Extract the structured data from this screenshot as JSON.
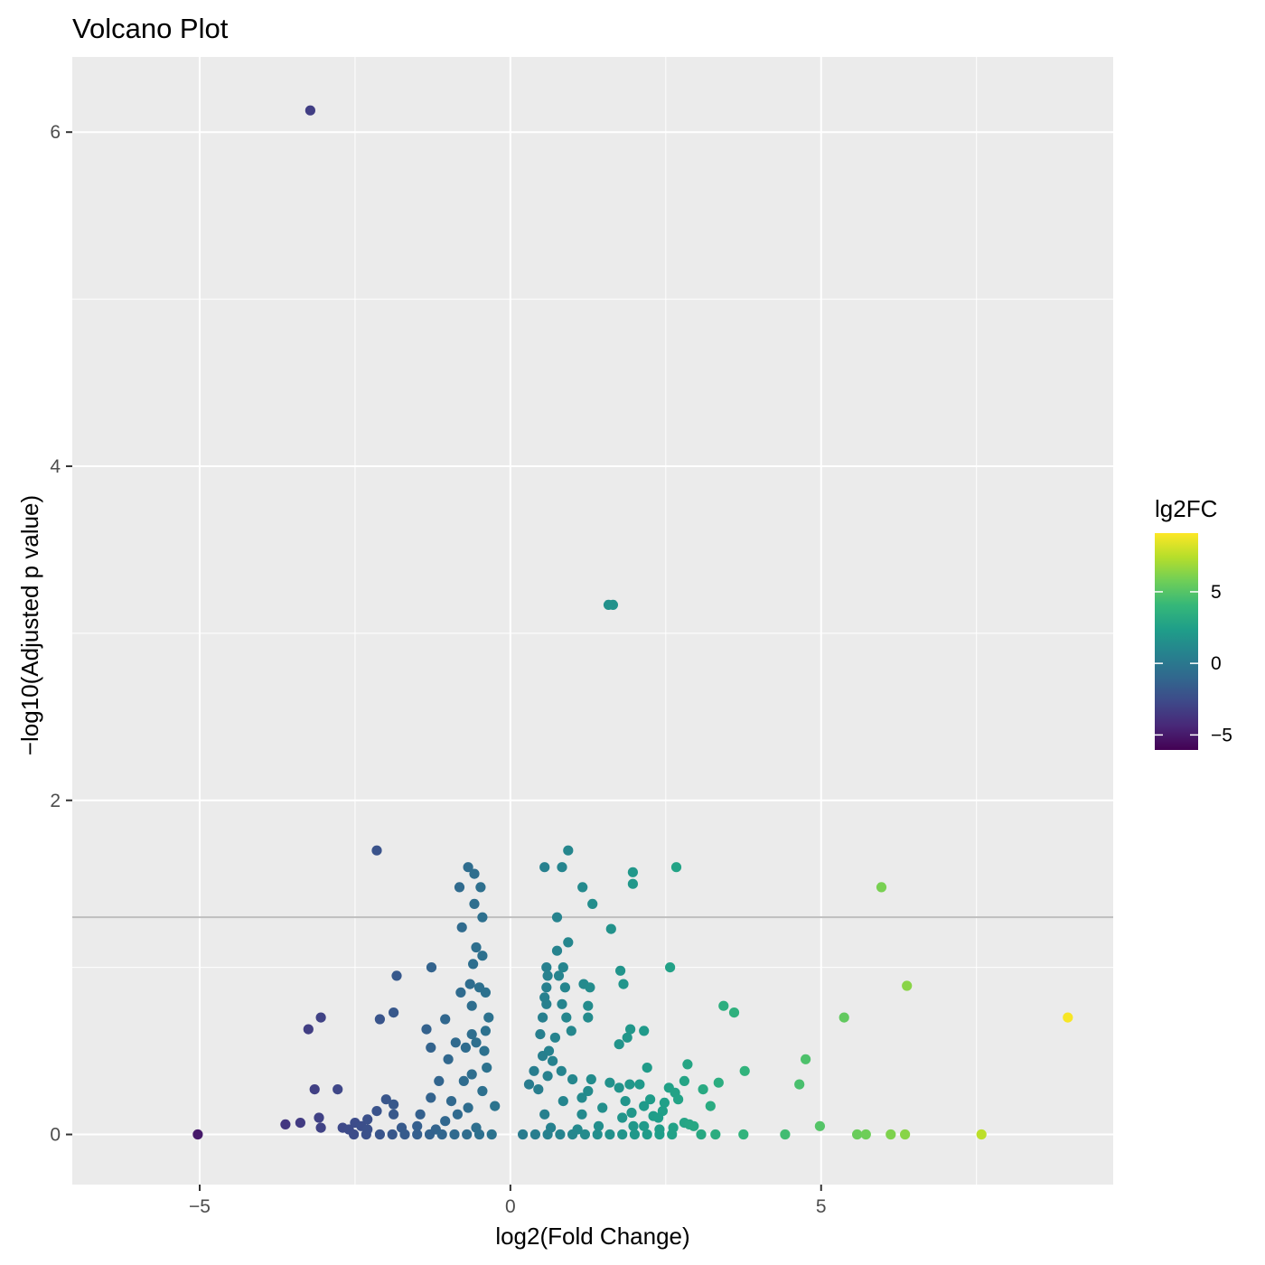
{
  "chart_data": {
    "type": "scatter",
    "title": "Volcano Plot",
    "xlabel": "log2(Fold Change)",
    "ylabel": "−log10(Adjusted p value)",
    "xlim": [
      -7.05,
      9.7
    ],
    "ylim": [
      -0.3,
      6.45
    ],
    "x_ticks": [
      -5,
      0,
      5
    ],
    "x_tick_labels": [
      "−5",
      "0",
      "5"
    ],
    "y_ticks": [
      0,
      2,
      4,
      6
    ],
    "y_tick_labels": [
      "0",
      "2",
      "4",
      "6"
    ],
    "threshold_line": {
      "y": 1.3,
      "color": "#bebebe"
    },
    "grid": true,
    "panel_background": "#ebebeb",
    "grid_color": "#ffffff",
    "legend": {
      "title": "lg2FC",
      "position": "right",
      "ticks": [
        5,
        0,
        -5
      ],
      "tick_labels": [
        "5",
        "0",
        "−5"
      ],
      "range": [
        -6.05,
        9.1
      ],
      "palette": [
        "#440154",
        "#482878",
        "#3e4989",
        "#31688e",
        "#26828e",
        "#1f9e89",
        "#35b779",
        "#6ece58",
        "#b5de2b",
        "#fde725"
      ]
    },
    "points": [
      {
        "x": -3.22,
        "y": 6.13
      },
      {
        "x": 1.58,
        "y": 3.17
      },
      {
        "x": 1.65,
        "y": 3.17
      },
      {
        "x": -2.15,
        "y": 1.7
      },
      {
        "x": 0.93,
        "y": 1.7
      },
      {
        "x": -0.68,
        "y": 1.6
      },
      {
        "x": -0.58,
        "y": 1.56
      },
      {
        "x": 0.55,
        "y": 1.6
      },
      {
        "x": 0.83,
        "y": 1.6
      },
      {
        "x": 1.97,
        "y": 1.57
      },
      {
        "x": 2.67,
        "y": 1.6
      },
      {
        "x": -0.82,
        "y": 1.48
      },
      {
        "x": -0.48,
        "y": 1.48
      },
      {
        "x": 1.16,
        "y": 1.48
      },
      {
        "x": 1.97,
        "y": 1.5
      },
      {
        "x": -0.58,
        "y": 1.38
      },
      {
        "x": 1.32,
        "y": 1.38
      },
      {
        "x": 5.97,
        "y": 1.48
      },
      {
        "x": -0.45,
        "y": 1.3
      },
      {
        "x": 0.75,
        "y": 1.3
      },
      {
        "x": -0.78,
        "y": 1.24
      },
      {
        "x": 1.62,
        "y": 1.23
      },
      {
        "x": 0.93,
        "y": 1.15
      },
      {
        "x": -0.55,
        "y": 1.12
      },
      {
        "x": -0.45,
        "y": 1.07
      },
      {
        "x": 0.75,
        "y": 1.1
      },
      {
        "x": -1.27,
        "y": 1.0
      },
      {
        "x": -0.6,
        "y": 1.02
      },
      {
        "x": 0.58,
        "y": 1.0
      },
      {
        "x": 0.85,
        "y": 1.0
      },
      {
        "x": 1.77,
        "y": 0.98
      },
      {
        "x": 2.57,
        "y": 1.0
      },
      {
        "x": -1.83,
        "y": 0.95
      },
      {
        "x": 0.6,
        "y": 0.95
      },
      {
        "x": 0.78,
        "y": 0.95
      },
      {
        "x": 1.18,
        "y": 0.9
      },
      {
        "x": -0.65,
        "y": 0.9
      },
      {
        "x": -0.5,
        "y": 0.88
      },
      {
        "x": 0.58,
        "y": 0.88
      },
      {
        "x": 0.88,
        "y": 0.88
      },
      {
        "x": 1.28,
        "y": 0.88
      },
      {
        "x": 1.82,
        "y": 0.9
      },
      {
        "x": 6.38,
        "y": 0.89
      },
      {
        "x": -0.8,
        "y": 0.85
      },
      {
        "x": -0.4,
        "y": 0.85
      },
      {
        "x": 0.55,
        "y": 0.82
      },
      {
        "x": -0.62,
        "y": 0.77
      },
      {
        "x": 0.58,
        "y": 0.78
      },
      {
        "x": 0.83,
        "y": 0.78
      },
      {
        "x": 1.25,
        "y": 0.77
      },
      {
        "x": 3.43,
        "y": 0.77
      },
      {
        "x": 3.6,
        "y": 0.73
      },
      {
        "x": -1.88,
        "y": 0.73
      },
      {
        "x": -0.35,
        "y": 0.7
      },
      {
        "x": -3.05,
        "y": 0.7
      },
      {
        "x": -2.1,
        "y": 0.69
      },
      {
        "x": -1.05,
        "y": 0.69
      },
      {
        "x": 0.52,
        "y": 0.7
      },
      {
        "x": 0.9,
        "y": 0.7
      },
      {
        "x": 1.25,
        "y": 0.7
      },
      {
        "x": 5.37,
        "y": 0.7
      },
      {
        "x": 8.97,
        "y": 0.7
      },
      {
        "x": -3.25,
        "y": 0.63
      },
      {
        "x": -1.35,
        "y": 0.63
      },
      {
        "x": 1.93,
        "y": 0.63
      },
      {
        "x": 2.15,
        "y": 0.62
      },
      {
        "x": -0.62,
        "y": 0.6
      },
      {
        "x": -0.4,
        "y": 0.62
      },
      {
        "x": 0.48,
        "y": 0.6
      },
      {
        "x": 0.72,
        "y": 0.58
      },
      {
        "x": 0.98,
        "y": 0.62
      },
      {
        "x": 1.88,
        "y": 0.58
      },
      {
        "x": -0.55,
        "y": 0.55
      },
      {
        "x": -1.28,
        "y": 0.52
      },
      {
        "x": -0.88,
        "y": 0.55
      },
      {
        "x": 1.75,
        "y": 0.54
      },
      {
        "x": -0.72,
        "y": 0.52
      },
      {
        "x": -0.42,
        "y": 0.5
      },
      {
        "x": 0.62,
        "y": 0.5
      },
      {
        "x": -1.0,
        "y": 0.45
      },
      {
        "x": 0.52,
        "y": 0.47
      },
      {
        "x": 4.75,
        "y": 0.45
      },
      {
        "x": 0.68,
        "y": 0.44
      },
      {
        "x": 2.85,
        "y": 0.42
      },
      {
        "x": 2.2,
        "y": 0.4
      },
      {
        "x": 3.77,
        "y": 0.38
      },
      {
        "x": -0.38,
        "y": 0.4
      },
      {
        "x": 0.38,
        "y": 0.38
      },
      {
        "x": 0.82,
        "y": 0.38
      },
      {
        "x": -0.62,
        "y": 0.36
      },
      {
        "x": 0.6,
        "y": 0.35
      },
      {
        "x": 1.0,
        "y": 0.33
      },
      {
        "x": 1.3,
        "y": 0.33
      },
      {
        "x": 2.8,
        "y": 0.32
      },
      {
        "x": 3.35,
        "y": 0.31
      },
      {
        "x": 4.65,
        "y": 0.3
      },
      {
        "x": -0.75,
        "y": 0.32
      },
      {
        "x": -1.15,
        "y": 0.32
      },
      {
        "x": 1.6,
        "y": 0.31
      },
      {
        "x": 1.92,
        "y": 0.3
      },
      {
        "x": 2.08,
        "y": 0.3
      },
      {
        "x": 0.3,
        "y": 0.3
      },
      {
        "x": -3.15,
        "y": 0.27
      },
      {
        "x": -2.78,
        "y": 0.27
      },
      {
        "x": 1.75,
        "y": 0.28
      },
      {
        "x": 2.55,
        "y": 0.28
      },
      {
        "x": 3.1,
        "y": 0.27
      },
      {
        "x": -0.45,
        "y": 0.26
      },
      {
        "x": 0.45,
        "y": 0.27
      },
      {
        "x": 1.25,
        "y": 0.26
      },
      {
        "x": 2.65,
        "y": 0.25
      },
      {
        "x": -1.28,
        "y": 0.22
      },
      {
        "x": -2.0,
        "y": 0.21
      },
      {
        "x": 1.15,
        "y": 0.22
      },
      {
        "x": 1.85,
        "y": 0.2
      },
      {
        "x": 2.25,
        "y": 0.21
      },
      {
        "x": 2.7,
        "y": 0.21
      },
      {
        "x": -0.95,
        "y": 0.2
      },
      {
        "x": 0.85,
        "y": 0.2
      },
      {
        "x": 2.48,
        "y": 0.19
      },
      {
        "x": -1.88,
        "y": 0.18
      },
      {
        "x": 2.15,
        "y": 0.17
      },
      {
        "x": -0.25,
        "y": 0.17
      },
      {
        "x": 3.22,
        "y": 0.17
      },
      {
        "x": -0.68,
        "y": 0.16
      },
      {
        "x": 1.48,
        "y": 0.16
      },
      {
        "x": -2.15,
        "y": 0.14
      },
      {
        "x": 2.45,
        "y": 0.14
      },
      {
        "x": 1.95,
        "y": 0.13
      },
      {
        "x": -1.88,
        "y": 0.12
      },
      {
        "x": -1.45,
        "y": 0.12
      },
      {
        "x": 0.55,
        "y": 0.12
      },
      {
        "x": 1.15,
        "y": 0.12
      },
      {
        "x": -0.85,
        "y": 0.12
      },
      {
        "x": 2.3,
        "y": 0.11
      },
      {
        "x": -3.08,
        "y": 0.1
      },
      {
        "x": 1.8,
        "y": 0.1
      },
      {
        "x": 2.38,
        "y": 0.1
      },
      {
        "x": -2.3,
        "y": 0.09
      },
      {
        "x": -1.05,
        "y": 0.08
      },
      {
        "x": -2.5,
        "y": 0.07
      },
      {
        "x": 2.8,
        "y": 0.07
      },
      {
        "x": -3.38,
        "y": 0.07
      },
      {
        "x": -3.62,
        "y": 0.06
      },
      {
        "x": 2.88,
        "y": 0.06
      },
      {
        "x": 2.95,
        "y": 0.05
      },
      {
        "x": 4.98,
        "y": 0.05
      },
      {
        "x": -1.5,
        "y": 0.05
      },
      {
        "x": 1.42,
        "y": 0.05
      },
      {
        "x": 1.98,
        "y": 0.05
      },
      {
        "x": 2.15,
        "y": 0.05
      },
      {
        "x": -2.4,
        "y": 0.05
      },
      {
        "x": -2.7,
        "y": 0.04
      },
      {
        "x": -3.05,
        "y": 0.04
      },
      {
        "x": -1.75,
        "y": 0.04
      },
      {
        "x": -0.55,
        "y": 0.04
      },
      {
        "x": 0.65,
        "y": 0.04
      },
      {
        "x": 2.62,
        "y": 0.04
      },
      {
        "x": -2.6,
        "y": 0.03
      },
      {
        "x": -2.3,
        "y": 0.03
      },
      {
        "x": -1.2,
        "y": 0.03
      },
      {
        "x": 1.08,
        "y": 0.03
      },
      {
        "x": 2.4,
        "y": 0.03
      },
      {
        "x": -5.03,
        "y": 0.0
      },
      {
        "x": -2.52,
        "y": 0.0
      },
      {
        "x": -2.32,
        "y": 0.0
      },
      {
        "x": -2.1,
        "y": 0.0
      },
      {
        "x": -1.9,
        "y": 0.0
      },
      {
        "x": -1.7,
        "y": 0.0
      },
      {
        "x": -1.5,
        "y": 0.0
      },
      {
        "x": -1.3,
        "y": 0.0
      },
      {
        "x": -1.1,
        "y": 0.0
      },
      {
        "x": -0.9,
        "y": 0.0
      },
      {
        "x": -0.7,
        "y": 0.0
      },
      {
        "x": -0.5,
        "y": 0.0
      },
      {
        "x": -0.3,
        "y": 0.0
      },
      {
        "x": 0.2,
        "y": 0.0
      },
      {
        "x": 0.4,
        "y": 0.0
      },
      {
        "x": 0.6,
        "y": 0.0
      },
      {
        "x": 0.8,
        "y": 0.0
      },
      {
        "x": 1.0,
        "y": 0.0
      },
      {
        "x": 1.2,
        "y": 0.0
      },
      {
        "x": 1.4,
        "y": 0.0
      },
      {
        "x": 1.6,
        "y": 0.0
      },
      {
        "x": 1.8,
        "y": 0.0
      },
      {
        "x": 2.0,
        "y": 0.0
      },
      {
        "x": 2.2,
        "y": 0.0
      },
      {
        "x": 2.4,
        "y": 0.0
      },
      {
        "x": 2.6,
        "y": 0.0
      },
      {
        "x": 3.07,
        "y": 0.0
      },
      {
        "x": 3.3,
        "y": 0.0
      },
      {
        "x": 3.75,
        "y": 0.0
      },
      {
        "x": 4.42,
        "y": 0.0
      },
      {
        "x": 5.58,
        "y": 0.0
      },
      {
        "x": 5.72,
        "y": 0.0
      },
      {
        "x": 6.12,
        "y": 0.0
      },
      {
        "x": 6.35,
        "y": 0.0
      },
      {
        "x": 7.58,
        "y": 0.0
      }
    ]
  }
}
